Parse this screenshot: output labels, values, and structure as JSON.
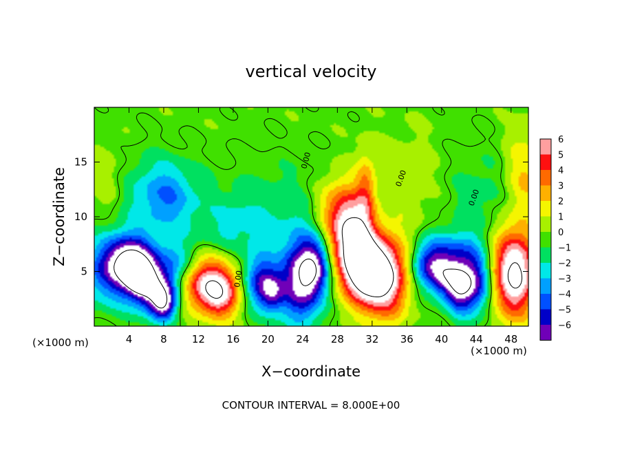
{
  "chart_data": {
    "type": "heatmap",
    "title": "vertical velocity",
    "xlabel": "X−coordinate",
    "ylabel": "Z−coordinate",
    "x_unit_left": "(×1000 m)",
    "x_unit_right": "(×1000 m)",
    "xlim": [
      0,
      50
    ],
    "ylim": [
      0,
      20
    ],
    "x_ticks": [
      4,
      8,
      12,
      16,
      20,
      24,
      28,
      32,
      36,
      40,
      44,
      48
    ],
    "y_ticks": [
      5,
      10,
      15
    ],
    "colorbar": {
      "levels": [
        6,
        5,
        4,
        3,
        2,
        1,
        0,
        -1,
        -2,
        -3,
        -4,
        -5,
        -6
      ],
      "colors": [
        "#ff9f9f",
        "#ff1010",
        "#ff6a00",
        "#ffb000",
        "#f5f500",
        "#a8f000",
        "#40e000",
        "#00e060",
        "#00e8e8",
        "#00a0ff",
        "#0050ff",
        "#0000c8",
        "#7000b8"
      ]
    },
    "contour_label": "0.00",
    "footer": "CONTOUR INTERVAL = 8.000E+00",
    "features": [
      {
        "x": 0.8,
        "z": 3.5,
        "w": 0.2,
        "sx": 1.4,
        "sz": 3.2
      },
      {
        "x": 2.5,
        "z": 5.0,
        "w": -5.5,
        "sx": 3.0,
        "sz": 2.2
      },
      {
        "x": 4.0,
        "z": 6.2,
        "w": -4.5,
        "sx": 1.8,
        "sz": 1.5
      },
      {
        "x": 5.2,
        "z": 4.6,
        "w": -7.0,
        "sx": 1.2,
        "sz": 1.2
      },
      {
        "x": 7.0,
        "z": 3.0,
        "w": -5.5,
        "sx": 1.6,
        "sz": 1.5
      },
      {
        "x": 8.0,
        "z": 2.0,
        "w": -5.0,
        "sx": 1.0,
        "sz": 1.1
      },
      {
        "x": 9.2,
        "z": 5.5,
        "w": -3.0,
        "sx": 1.6,
        "sz": 1.5
      },
      {
        "x": 13.2,
        "z": 3.8,
        "w": 7.0,
        "sx": 2.2,
        "sz": 1.7
      },
      {
        "x": 14.6,
        "z": 2.3,
        "w": 3.0,
        "sx": 1.5,
        "sz": 1.4
      },
      {
        "x": 19.0,
        "z": 4.0,
        "w": -5.0,
        "sx": 1.3,
        "sz": 1.8
      },
      {
        "x": 20.5,
        "z": 3.0,
        "w": -4.0,
        "sx": 1.0,
        "sz": 1.4
      },
      {
        "x": 23.8,
        "z": 4.2,
        "w": -7.5,
        "sx": 1.7,
        "sz": 2.7
      },
      {
        "x": 25.5,
        "z": 5.5,
        "w": -4.0,
        "sx": 1.2,
        "sz": 1.8
      },
      {
        "x": 28.0,
        "z": 10.5,
        "w": 3.5,
        "sx": 1.8,
        "sz": 2.2
      },
      {
        "x": 29.8,
        "z": 7.5,
        "w": 8.0,
        "sx": 1.6,
        "sz": 2.8
      },
      {
        "x": 31.2,
        "z": 5.0,
        "w": 5.5,
        "sx": 1.5,
        "sz": 2.0
      },
      {
        "x": 33.5,
        "z": 4.5,
        "w": 8.0,
        "sx": 1.9,
        "sz": 2.6
      },
      {
        "x": 31.3,
        "z": 12.5,
        "w": 3.0,
        "sx": 0.8,
        "sz": 2.5
      },
      {
        "x": 38.5,
        "z": 5.5,
        "w": -5.0,
        "sx": 1.4,
        "sz": 1.6
      },
      {
        "x": 40.5,
        "z": 4.5,
        "w": -4.5,
        "sx": 1.2,
        "sz": 1.5
      },
      {
        "x": 42.0,
        "z": 3.5,
        "w": -4.5,
        "sx": 1.0,
        "sz": 1.6
      },
      {
        "x": 43.7,
        "z": 4.0,
        "w": -6.5,
        "sx": 1.4,
        "sz": 2.0
      },
      {
        "x": 41.5,
        "z": 7.0,
        "w": -2.5,
        "sx": 2.0,
        "sz": 1.4
      },
      {
        "x": 48.5,
        "z": 4.8,
        "w": 8.5,
        "sx": 1.8,
        "sz": 2.8
      },
      {
        "x": 49.7,
        "z": 14.0,
        "w": 2.5,
        "sx": 1.6,
        "sz": 2.8
      },
      {
        "x": 8.5,
        "z": 12.0,
        "w": -2.8,
        "sx": 2.4,
        "sz": 2.2
      },
      {
        "x": 6.0,
        "z": 11.5,
        "w": -1.3,
        "sx": 3.0,
        "sz": 3.0
      },
      {
        "x": 21.0,
        "z": 11.0,
        "w": -1.2,
        "sx": 5.0,
        "sz": 3.0
      },
      {
        "x": 36.5,
        "z": 13.0,
        "w": 0.8,
        "sx": 2.5,
        "sz": 3.5
      },
      {
        "x": 44.5,
        "z": 12.0,
        "w": -1.2,
        "sx": 3.0,
        "sz": 3.0
      },
      {
        "x": 16.0,
        "z": 9.0,
        "w": -1.5,
        "sx": 3.5,
        "sz": 2.0
      },
      {
        "x": 1.5,
        "z": 13.0,
        "w": 1.0,
        "sx": 1.5,
        "sz": 2.5
      }
    ]
  }
}
